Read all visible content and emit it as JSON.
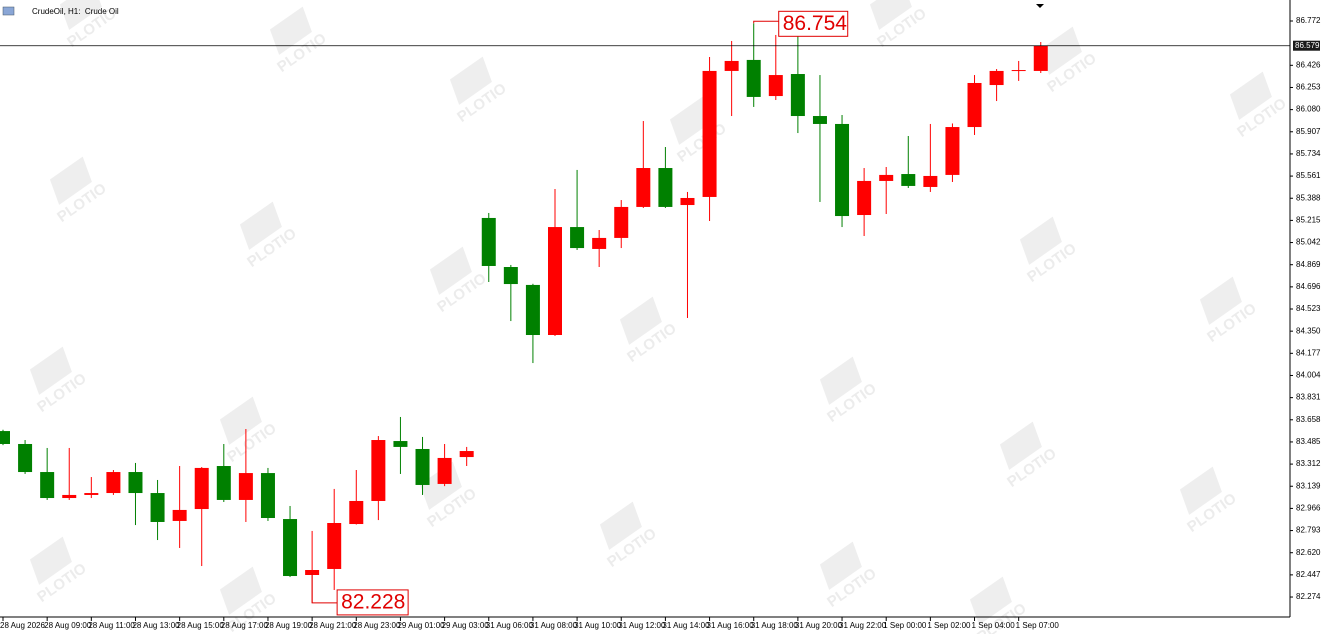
{
  "chart_data": {
    "type": "candlestick",
    "title": "CrudeOil, H1:  Crude Oil",
    "watermark": "PLOTIO",
    "categories": [
      "28 Aug 2026",
      null,
      "28 Aug 09:00",
      null,
      "28 Aug 11:00",
      null,
      "28 Aug 13:00",
      null,
      "28 Aug 15:00",
      null,
      "28 Aug 17:00",
      null,
      "28 Aug 19:00",
      null,
      "28 Aug 21:00",
      null,
      "28 Aug 23:00",
      null,
      "29 Aug 01:00",
      null,
      "29 Aug 03:00",
      null,
      "31 Aug 06:00",
      null,
      "31 Aug 08:00",
      null,
      "31 Aug 10:00",
      null,
      "31 Aug 12:00",
      null,
      "31 Aug 14:00",
      null,
      "31 Aug 16:00",
      null,
      "31 Aug 18:00",
      null,
      "31 Aug 20:00",
      null,
      "31 Aug 22:00",
      null,
      "1 Sep 00:00",
      null,
      "1 Sep 02:00",
      null,
      "1 Sep 04:00",
      null,
      "1 Sep 07:00",
      null
    ],
    "open": [
      83.57,
      83.469,
      83.25,
      83.047,
      83.071,
      83.086,
      83.25,
      83.086,
      82.868,
      82.961,
      83.297,
      83.032,
      83.242,
      82.883,
      82.446,
      82.493,
      82.844,
      83.024,
      83.492,
      83.43,
      83.157,
      83.367,
      85.234,
      84.851,
      84.711,
      84.32,
      85.163,
      84.992,
      85.078,
      85.32,
      85.624,
      85.335,
      85.398,
      86.382,
      86.468,
      86.186,
      86.358,
      86.03,
      85.968,
      85.257,
      85.523,
      85.577,
      85.476,
      85.57,
      85.944,
      86.272,
      86.382,
      86.382
    ],
    "high": [
      83.58,
      83.5,
      83.438,
      83.438,
      83.211,
      83.266,
      83.321,
      83.188,
      83.297,
      83.289,
      83.469,
      83.586,
      83.282,
      82.985,
      82.79,
      83.118,
      83.266,
      83.531,
      83.68,
      83.524,
      83.469,
      83.446,
      85.273,
      84.867,
      84.72,
      85.46,
      85.609,
      85.14,
      85.374,
      85.991,
      85.788,
      85.437,
      86.491,
      86.616,
      86.754,
      86.663,
      86.694,
      86.35,
      86.038,
      85.624,
      85.632,
      85.874,
      85.968,
      85.972,
      86.35,
      86.397,
      86.46,
      86.608
    ],
    "low": [
      83.46,
      83.235,
      83.032,
      83.032,
      83.047,
      83.071,
      82.836,
      82.719,
      82.657,
      82.516,
      83.016,
      82.86,
      82.868,
      82.43,
      82.228,
      82.329,
      82.84,
      82.875,
      83.235,
      83.071,
      83.14,
      83.297,
      84.734,
      84.429,
      84.101,
      84.312,
      84.984,
      84.851,
      84.999,
      85.312,
      85.312,
      84.453,
      85.21,
      86.03,
      86.101,
      86.155,
      85.897,
      85.359,
      85.163,
      85.093,
      85.265,
      85.468,
      85.437,
      85.515,
      85.882,
      86.147,
      86.304,
      86.366
    ],
    "close": [
      83.469,
      83.25,
      83.047,
      83.071,
      83.086,
      83.25,
      83.086,
      82.86,
      82.954,
      83.282,
      83.032,
      83.242,
      82.891,
      82.438,
      82.485,
      82.852,
      83.024,
      83.5,
      83.446,
      83.149,
      83.36,
      83.414,
      84.859,
      84.718,
      84.32,
      85.163,
      84.999,
      85.078,
      85.32,
      85.624,
      85.32,
      85.39,
      86.382,
      86.46,
      86.179,
      86.35,
      86.03,
      85.968,
      85.249,
      85.523,
      85.57,
      85.484,
      85.562,
      85.944,
      86.288,
      86.382,
      86.389,
      86.579
    ],
    "up_color": "#ff0000",
    "down_color": "#008000",
    "ylim": [
      82.118,
      86.936
    ],
    "yticks": [
      86.772,
      86.426,
      86.253,
      {
        "value": 86.08,
        "label": "86.080"
      },
      85.907,
      85.734,
      85.561,
      85.388,
      85.215,
      85.042,
      84.869,
      84.696,
      84.523,
      {
        "value": 84.35,
        "label": "84.350"
      },
      84.177,
      84.004,
      83.831,
      83.658,
      83.485,
      83.312,
      83.139,
      82.966,
      82.793,
      {
        "value": 82.62,
        "label": "82.620"
      },
      82.447,
      82.274
    ]
  }
}
